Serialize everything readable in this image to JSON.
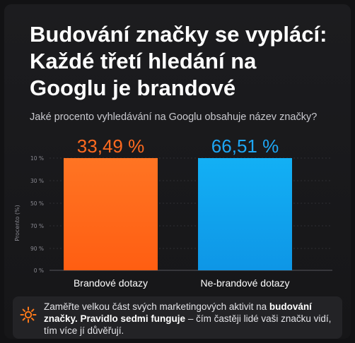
{
  "title_lines": [
    "Budování značky se vyplácí:",
    "Každé třetí hledání na",
    "Googlu je brandové"
  ],
  "subtitle": "Jaké procento vyhledávání na Googlu obsahuje název značky?",
  "chart_data": {
    "type": "bar",
    "categories": [
      "Brandové dotazy",
      "Ne-brandové dotazy"
    ],
    "values": [
      33.49,
      66.51
    ],
    "value_labels": [
      "33,49 %",
      "66,51 %"
    ],
    "ylabel": "Procento (%)",
    "y_tick_labels": [
      "10 %",
      "30 %",
      "50 %",
      "70 %",
      "90 %",
      "0 %"
    ],
    "bar_colors": [
      "#ff6a1f",
      "#14a8f0"
    ],
    "value_label_colors": [
      "#ff6a1f",
      "#1ea7f5"
    ],
    "grid": true,
    "legend": "none"
  },
  "footer": {
    "icon": "sun-burst-icon",
    "icon_color": "#ff7a1a",
    "text_1": "Zaměřte velkou část svých marketingových aktivit na ",
    "bold_1": "budování značky. Pravidlo sedmi funguje",
    "text_2": " – čím častěji lidé vaši značku vidí, tím více jí důvěřují."
  }
}
